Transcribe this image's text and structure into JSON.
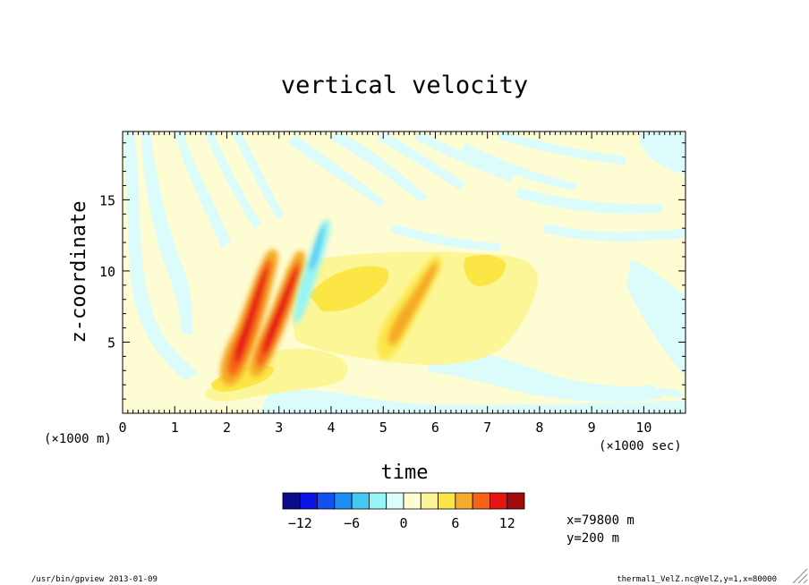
{
  "chart_data": {
    "type": "heatmap",
    "title": "vertical velocity",
    "xlabel": "time",
    "ylabel": "z-coordinate",
    "x_unit_note": "(×1000 sec)",
    "y_unit_note": "(×1000 m)",
    "xlim": [
      0,
      10.8
    ],
    "ylim": [
      0,
      19.8
    ],
    "x_ticks": [
      "0",
      "1",
      "2",
      "3",
      "4",
      "5",
      "6",
      "7",
      "8",
      "9",
      "10"
    ],
    "y_ticks": [
      "5",
      "10",
      "15"
    ],
    "colorbar": {
      "tick_labels": [
        "−12",
        "−6",
        "0",
        "6",
        "12"
      ],
      "colors": [
        "#0a0a8c",
        "#0a14e6",
        "#1450f0",
        "#1e8cf0",
        "#46c8f5",
        "#96f5f5",
        "#dcfcfc",
        "#fefcd2",
        "#fcf696",
        "#fbe646",
        "#f5aa28",
        "#f56414",
        "#e61414",
        "#a00a0a"
      ]
    },
    "annotations": {
      "position_x": "x=79800 m",
      "position_y": "y=200 m",
      "footer_left": "/usr/bin/gpview  2013-01-09",
      "footer_right": "thermal1_VelZ.nc@VelZ,y=1,x=80000"
    },
    "features": [
      {
        "kind": "updraft-band",
        "t_start": 2.0,
        "z_start": 1.8,
        "t_end": 2.85,
        "z_end": 11.0,
        "peak": 12
      },
      {
        "kind": "updraft-band",
        "t_start": 2.55,
        "z_start": 2.4,
        "t_end": 3.35,
        "z_end": 11.0,
        "peak": 12
      },
      {
        "kind": "updraft-band",
        "t_start": 5.2,
        "z_start": 4.5,
        "t_end": 6.0,
        "z_end": 11.0,
        "peak": 8
      },
      {
        "kind": "downdraft",
        "t": 3.75,
        "z": 11.5,
        "peak": -6
      }
    ]
  }
}
